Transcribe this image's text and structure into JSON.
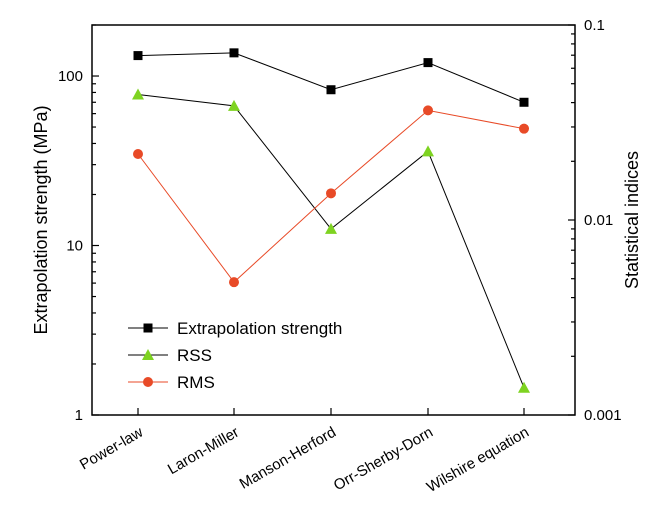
{
  "chart_data": {
    "type": "line",
    "categories": [
      "Power-law",
      "Laron-Miller",
      "Manson-Herford",
      "Orr-Sherby-Dorn",
      "Wilshire equation"
    ],
    "y_left": {
      "label": "Extrapolation strength (MPa)",
      "scale": "log",
      "range": [
        1,
        200
      ],
      "ticks": [
        1,
        10,
        100
      ],
      "tick_labels": [
        "1",
        "10",
        "100"
      ]
    },
    "y_right": {
      "label": "Statistical indices",
      "scale": "log",
      "range": [
        0.001,
        0.1
      ],
      "ticks": [
        0.001,
        0.01,
        0.1
      ],
      "tick_labels": [
        "0.001",
        "0.01",
        "0.1"
      ]
    },
    "series": [
      {
        "name": "Extrapolation strength",
        "axis": "left",
        "marker": "square",
        "color": "#000000",
        "values": [
          132,
          137,
          83,
          120,
          70
        ]
      },
      {
        "name": "RSS",
        "axis": "right",
        "marker": "triangle",
        "color": "#000000",
        "marker_color": "#7ed321",
        "values": [
          0.044,
          0.0385,
          0.009,
          0.0225,
          0.00138
        ]
      },
      {
        "name": "RMS",
        "axis": "right",
        "marker": "circle",
        "color": "#e84a27",
        "marker_color": "#e84a27",
        "values": [
          0.0218,
          0.0048,
          0.0137,
          0.0365,
          0.0294
        ]
      }
    ],
    "legend": {
      "position": "bottom-left",
      "entries": [
        "Extrapolation strength",
        "RSS",
        "RMS"
      ]
    },
    "grid": false
  }
}
